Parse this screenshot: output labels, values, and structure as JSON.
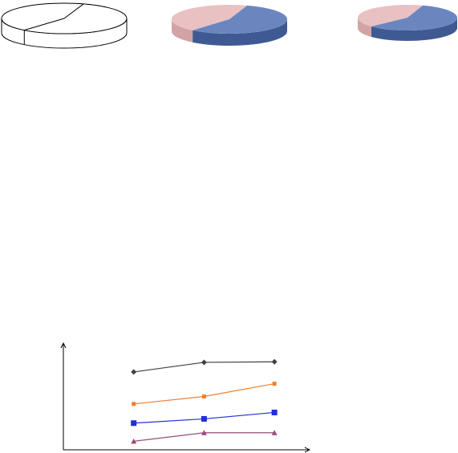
{
  "colors": {
    "background": "#ffffff",
    "outline": "#000000",
    "pie_blue": "#6b86bf",
    "pie_blue_side": "#3f5a93",
    "pie_pink": "#e9c1c3",
    "pie_pink_side": "#d2a3a5",
    "line_black": "#404040",
    "line_orange": "#f08030",
    "line_blue": "#1f2fd6",
    "line_purple": "#9a4c7a"
  },
  "chart_data": [
    {
      "type": "pie",
      "style": "3d-outline",
      "slices": [
        {
          "label": "",
          "value": 44,
          "color": "none"
        },
        {
          "label": "",
          "value": 56,
          "color": "none"
        }
      ]
    },
    {
      "type": "pie",
      "style": "3d",
      "slices": [
        {
          "label": "",
          "value": 44,
          "color": "#e9c1c3"
        },
        {
          "label": "",
          "value": 56,
          "color": "#6b86bf"
        }
      ]
    },
    {
      "type": "pie",
      "style": "3d",
      "slices": [
        {
          "label": "",
          "value": 42,
          "color": "#e9c1c3"
        },
        {
          "label": "",
          "value": 58,
          "color": "#6b86bf"
        }
      ]
    },
    {
      "type": "line",
      "title": "",
      "xlabel": "",
      "ylabel": "",
      "x": [
        1,
        2,
        3
      ],
      "xlim": [
        0,
        3.5
      ],
      "ylim": [
        0,
        10
      ],
      "grid": false,
      "legend": "none",
      "series": [
        {
          "values": [
            7.3,
            8.2,
            8.25
          ],
          "color": "#404040",
          "marker": "diamond"
        },
        {
          "values": [
            4.3,
            5.0,
            6.2
          ],
          "color": "#f08030",
          "marker": "square-small"
        },
        {
          "values": [
            2.5,
            2.9,
            3.5
          ],
          "color": "#1f2fd6",
          "marker": "square"
        },
        {
          "values": [
            0.8,
            1.6,
            1.6
          ],
          "color": "#9a4c7a",
          "marker": "triangle"
        }
      ]
    }
  ]
}
